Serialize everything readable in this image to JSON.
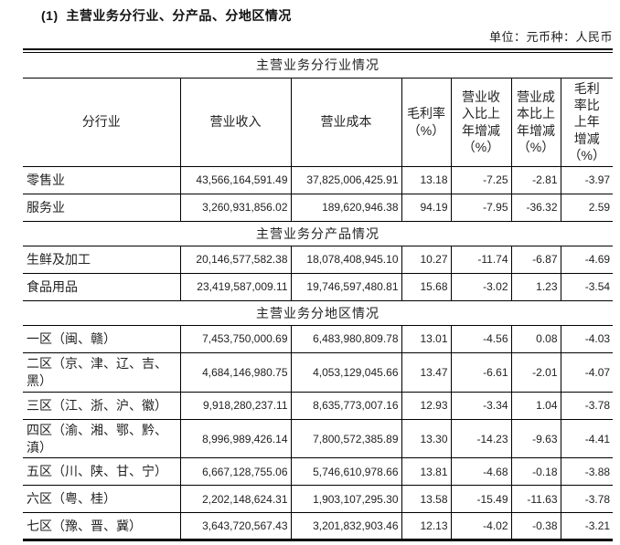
{
  "page": {
    "heading": "(1)  主营业务分行业、分产品、分地区情况",
    "unit_note": "单位：元币种：人民币"
  },
  "table": {
    "columns": [
      "分行业",
      "营业收入",
      "营业成本",
      "毛利率\n（%）",
      "营业收\n入比上\n年增减\n（%）",
      "营业成\n本比上\n年增减\n（%）",
      "毛利\n率比\n上年\n增减\n（%）"
    ],
    "sections": [
      {
        "title": "主营业务分行业情况",
        "rows": [
          {
            "label": "零售业",
            "values": [
              "43,566,164,591.49",
              "37,825,006,425.91",
              "13.18",
              "-7.25",
              "-2.81",
              "-3.97"
            ]
          },
          {
            "label": "服务业",
            "values": [
              "3,260,931,856.02",
              "189,620,946.38",
              "94.19",
              "-7.95",
              "-36.32",
              "2.59"
            ]
          }
        ]
      },
      {
        "title": "主营业务分产品情况",
        "rows": [
          {
            "label": "生鲜及加工",
            "values": [
              "20,146,577,582.38",
              "18,078,408,945.10",
              "10.27",
              "-11.74",
              "-6.87",
              "-4.69"
            ]
          },
          {
            "label": "食品用品",
            "values": [
              "23,419,587,009.11",
              "19,746,597,480.81",
              "15.68",
              "-3.02",
              "1.23",
              "-3.54"
            ]
          }
        ]
      },
      {
        "title": "主营业务分地区情况",
        "rows": [
          {
            "label": "一区（闽、赣）",
            "values": [
              "7,453,750,000.69",
              "6,483,980,809.78",
              "13.01",
              "-4.56",
              "0.08",
              "-4.03"
            ]
          },
          {
            "label": "二区（京、津、辽、吉、黑）",
            "values": [
              "4,684,146,980.75",
              "4,053,129,045.66",
              "13.47",
              "-6.61",
              "-2.01",
              "-4.07"
            ]
          },
          {
            "label": "三区（江、浙、沪、徽）",
            "values": [
              "9,918,280,237.11",
              "8,635,773,007.16",
              "12.93",
              "-3.34",
              "1.04",
              "-3.78"
            ]
          },
          {
            "label": "四区（渝、湘、鄂、黔、滇）",
            "values": [
              "8,996,989,426.14",
              "7,800,572,385.89",
              "13.30",
              "-14.23",
              "-9.63",
              "-4.41"
            ]
          },
          {
            "label": "五区（川、陕、甘、宁）",
            "values": [
              "6,667,128,755.06",
              "5,746,610,978.66",
              "13.81",
              "-4.68",
              "-0.18",
              "-3.88"
            ]
          },
          {
            "label": "六区（粤、桂）",
            "values": [
              "2,202,148,624.31",
              "1,903,107,295.30",
              "13.58",
              "-15.49",
              "-11.63",
              "-3.78"
            ]
          },
          {
            "label": "七区（豫、晋、冀）",
            "values": [
              "3,643,720,567.43",
              "3,201,832,903.46",
              "12.13",
              "-4.02",
              "-0.38",
              "-3.21"
            ]
          }
        ]
      }
    ]
  }
}
